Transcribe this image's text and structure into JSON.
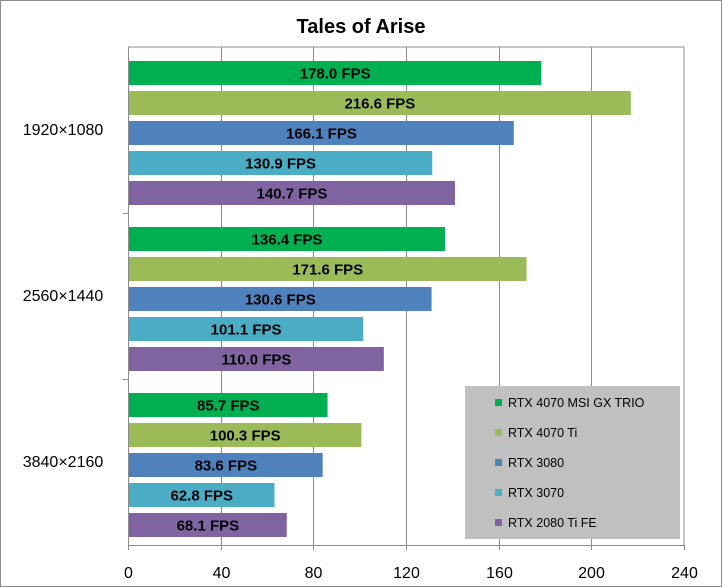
{
  "chart_data": {
    "type": "bar",
    "orientation": "horizontal",
    "title": "Tales of Arise",
    "categories": [
      "1920×1080",
      "2560×1440",
      "3840×2160"
    ],
    "series": [
      {
        "name": "RTX 4070 MSI GX TRIO",
        "color": "#00b050",
        "values": [
          178.0,
          136.4,
          85.7
        ],
        "labels": [
          "178.0 FPS",
          "136.4 FPS",
          "85.7 FPS"
        ]
      },
      {
        "name": "RTX 4070 Ti",
        "color": "#9bbb59",
        "values": [
          216.6,
          171.6,
          100.3
        ],
        "labels": [
          "216.6 FPS",
          "171.6 FPS",
          "100.3 FPS"
        ]
      },
      {
        "name": "RTX 3080",
        "color": "#4f81bd",
        "values": [
          166.1,
          130.6,
          83.6
        ],
        "labels": [
          "166.1 FPS",
          "130.6 FPS",
          "83.6 FPS"
        ]
      },
      {
        "name": "RTX 3070",
        "color": "#4bacc6",
        "values": [
          130.9,
          101.1,
          62.8
        ],
        "labels": [
          "130.9 FPS",
          "101.1 FPS",
          "62.8 FPS"
        ]
      },
      {
        "name": "RTX 2080 Ti FE",
        "color": "#8064a2",
        "values": [
          140.7,
          110.0,
          68.1
        ],
        "labels": [
          "140.7 FPS",
          "110.0 FPS",
          "68.1 FPS"
        ]
      }
    ],
    "xlim": [
      0,
      240
    ],
    "xticks": [
      0,
      40,
      80,
      120,
      160,
      200,
      240
    ],
    "tick_labels": [
      "0",
      "40",
      "80",
      "120",
      "160",
      "200",
      "240"
    ],
    "grid": "vertical",
    "legend": "bottom-right",
    "legend_bg": "#c0c0c0"
  }
}
